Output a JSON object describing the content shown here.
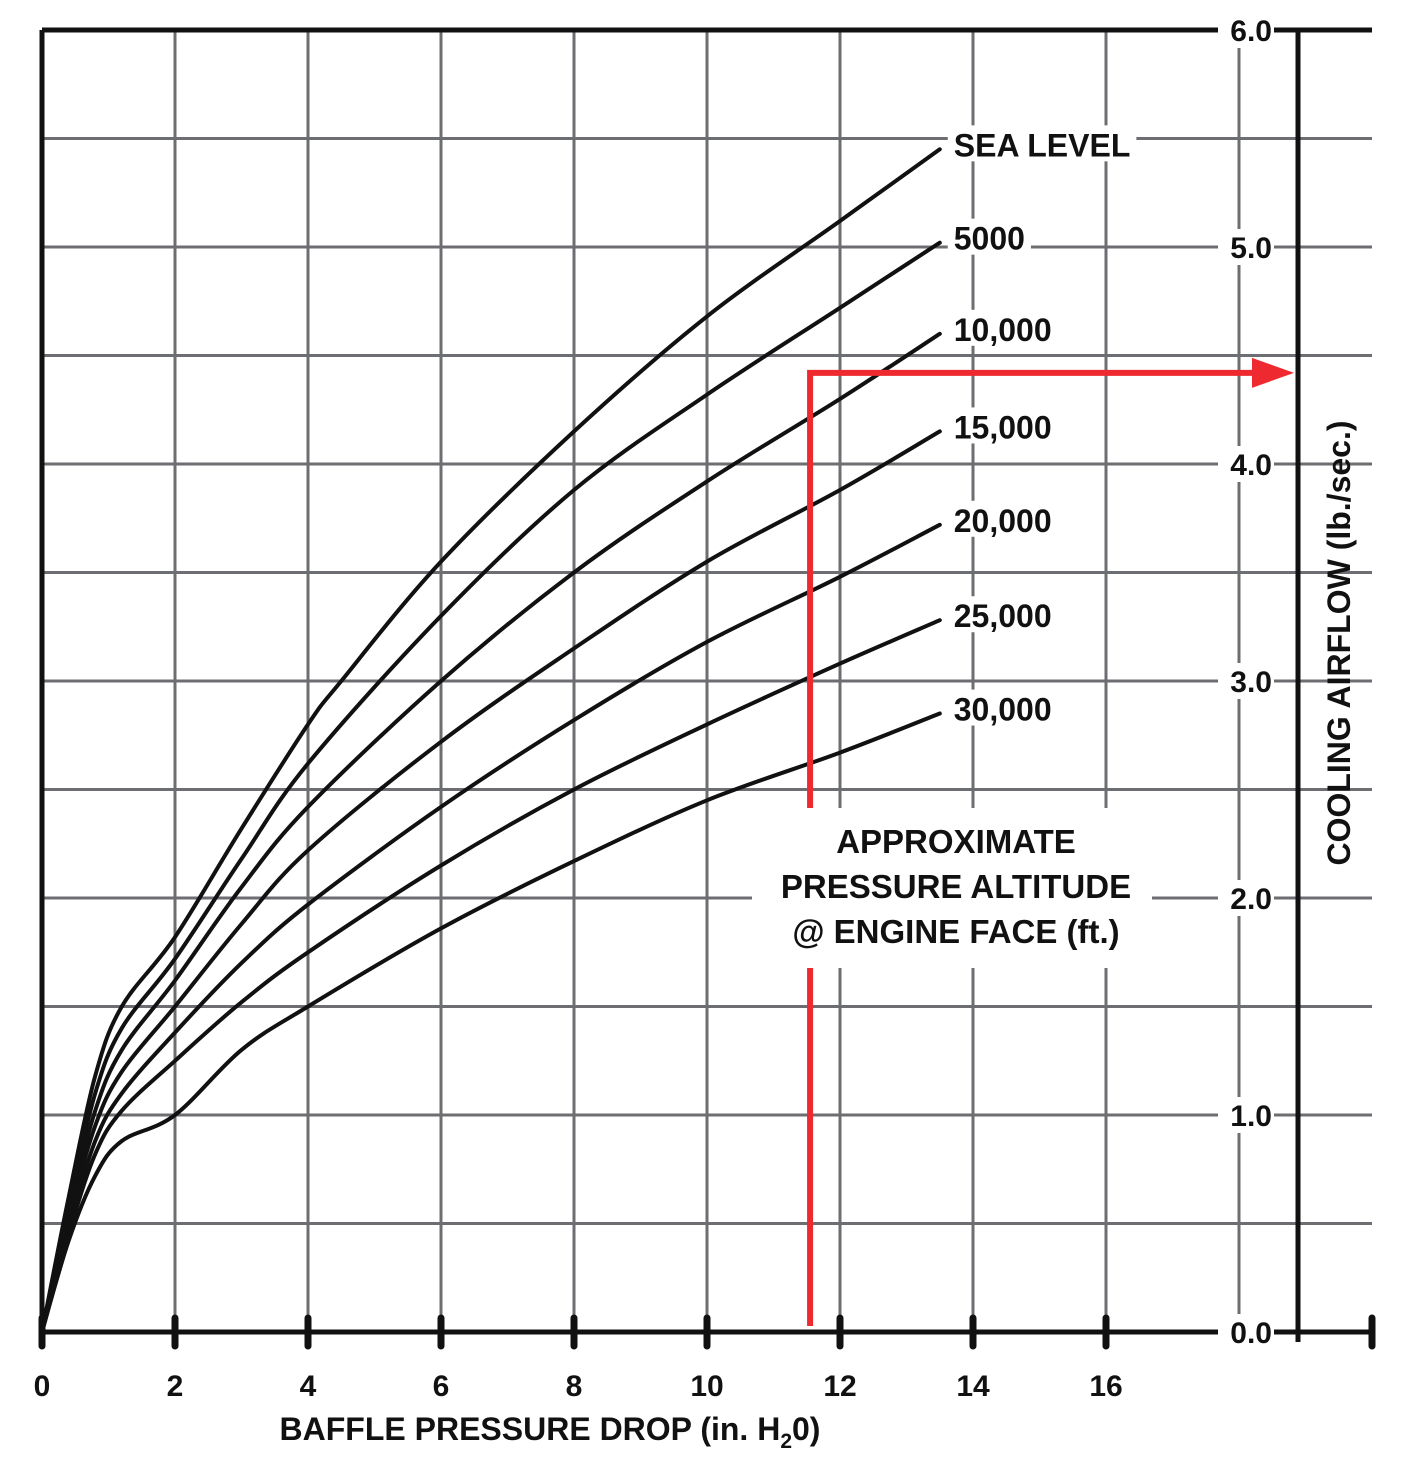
{
  "chart_data": {
    "type": "line",
    "xlabel": "BAFFLE PRESSURE DROP (in. H",
    "xlabel_sub": "2",
    "xlabel_end": "0)",
    "ylabel": "COOLING AIRFLOW (lb./sec.)",
    "xlim": [
      0,
      20
    ],
    "ylim": [
      0,
      6
    ],
    "x_ticks": [
      "0",
      "2",
      "4",
      "6",
      "8",
      "10",
      "12",
      "14",
      "16"
    ],
    "y_ticks": [
      "0.0",
      "1.0",
      "2.0",
      "3.0",
      "4.0",
      "5.0",
      "6.0"
    ],
    "grid": true,
    "annotation": [
      "APPROXIMATE",
      "PRESSURE ALTITUDE",
      "@ ENGINE FACE (ft.)"
    ],
    "series": [
      {
        "name": "SEA LEVEL",
        "x": [
          0,
          0.4,
          0.8,
          1.2,
          2,
          3,
          4,
          4.5,
          6,
          8,
          10,
          12,
          13.5
        ],
        "y": [
          0,
          0.62,
          1.18,
          1.5,
          1.82,
          2.32,
          2.8,
          3.0,
          3.55,
          4.15,
          4.68,
          5.12,
          5.45
        ]
      },
      {
        "name": "5000",
        "x": [
          0,
          0.4,
          0.8,
          1.2,
          2,
          3,
          4,
          6,
          8,
          10,
          12,
          13.5
        ],
        "y": [
          0,
          0.58,
          1.1,
          1.4,
          1.72,
          2.18,
          2.62,
          3.3,
          3.88,
          4.32,
          4.72,
          5.02
        ]
      },
      {
        "name": "10,000",
        "x": [
          0,
          0.4,
          0.8,
          1.2,
          2,
          3,
          4,
          6,
          8,
          10,
          12,
          13.5
        ],
        "y": [
          0,
          0.55,
          1.02,
          1.3,
          1.62,
          2.05,
          2.42,
          3.0,
          3.5,
          3.92,
          4.3,
          4.6
        ]
      },
      {
        "name": "15,000",
        "x": [
          0,
          0.4,
          0.8,
          1.2,
          2,
          3,
          4,
          6,
          8,
          10,
          12,
          13.5
        ],
        "y": [
          0,
          0.52,
          0.95,
          1.2,
          1.5,
          1.88,
          2.22,
          2.72,
          3.15,
          3.55,
          3.88,
          4.15
        ]
      },
      {
        "name": "20,000",
        "x": [
          0,
          0.4,
          0.8,
          1.2,
          2,
          3,
          4,
          6,
          8,
          10,
          12,
          13.5
        ],
        "y": [
          0,
          0.48,
          0.88,
          1.1,
          1.38,
          1.7,
          1.97,
          2.42,
          2.82,
          3.18,
          3.48,
          3.72
        ]
      },
      {
        "name": "25,000",
        "x": [
          0,
          0.4,
          0.8,
          1.2,
          2,
          3,
          4,
          6,
          8,
          10,
          12,
          13.5
        ],
        "y": [
          0,
          0.45,
          0.82,
          1.02,
          1.25,
          1.52,
          1.75,
          2.15,
          2.5,
          2.8,
          3.08,
          3.28
        ]
      },
      {
        "name": "30,000",
        "x": [
          0,
          0.4,
          0.8,
          1.2,
          2,
          3,
          4,
          6,
          8,
          10,
          12,
          13.5
        ],
        "y": [
          0,
          0.42,
          0.72,
          0.88,
          1.0,
          1.3,
          1.5,
          1.86,
          2.17,
          2.45,
          2.67,
          2.85
        ]
      }
    ],
    "highlight": {
      "color": "#ee2a30",
      "x": 11.55,
      "y": 4.42
    },
    "colors": {
      "curve": "#111111",
      "grid": "#6d6e71",
      "axis": "#111111"
    }
  }
}
